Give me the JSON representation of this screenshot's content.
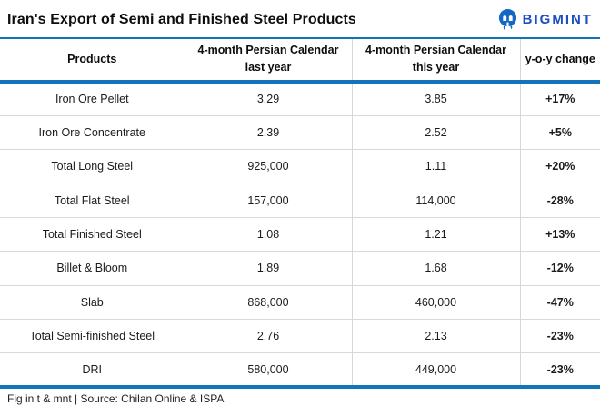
{
  "header": {
    "title": "Iran's Export of Semi and Finished Steel Products",
    "brand": "BIGMINT"
  },
  "chart_data": {
    "type": "table",
    "title": "Iran's Export of Semi and Finished Steel Products",
    "columns": [
      "Products",
      "4-month Persian Calendar last year",
      "4-month Persian Calendar this year",
      "y-o-y change"
    ],
    "rows": [
      {
        "product": "Iron Ore Pellet",
        "last_year": "3.29",
        "this_year": "3.85",
        "yoy_change": "+17%",
        "trend": "up"
      },
      {
        "product": "Iron Ore Concentrate",
        "last_year": "2.39",
        "this_year": "2.52",
        "yoy_change": "+5%",
        "trend": "up"
      },
      {
        "product": "Total Long Steel",
        "last_year": "925,000",
        "this_year": "1.11",
        "yoy_change": "+20%",
        "trend": "up"
      },
      {
        "product": "Total Flat Steel",
        "last_year": "157,000",
        "this_year": "114,000",
        "yoy_change": "-28%",
        "trend": "down"
      },
      {
        "product": "Total Finished Steel",
        "last_year": "1.08",
        "this_year": "1.21",
        "yoy_change": "+13%",
        "trend": "up"
      },
      {
        "product": "Billet & Bloom",
        "last_year": "1.89",
        "this_year": "1.68",
        "yoy_change": "-12%",
        "trend": "down"
      },
      {
        "product": "Slab",
        "last_year": "868,000",
        "this_year": "460,000",
        "yoy_change": "-47%",
        "trend": "down"
      },
      {
        "product": "Total Semi-finished Steel",
        "last_year": "2.76",
        "this_year": "2.13",
        "yoy_change": "-23%",
        "trend": "down"
      },
      {
        "product": "DRI",
        "last_year": "580,000",
        "this_year": "449,000",
        "yoy_change": "-23%",
        "trend": "down"
      }
    ],
    "note": "Fig in t & mnt | Source:  Chilan Online  & ISPA"
  },
  "footer": {
    "note": "Fig in t & mnt | Source:  Chilan Online  & ISPA"
  },
  "colors": {
    "accent_blue": "#1273b9",
    "brand_blue": "#1d4fc0",
    "logo_blue": "#1268c3",
    "positive_green": "#00b052",
    "negative_red": "#fb1b1f",
    "divider_gray": "#d9d9d9"
  }
}
